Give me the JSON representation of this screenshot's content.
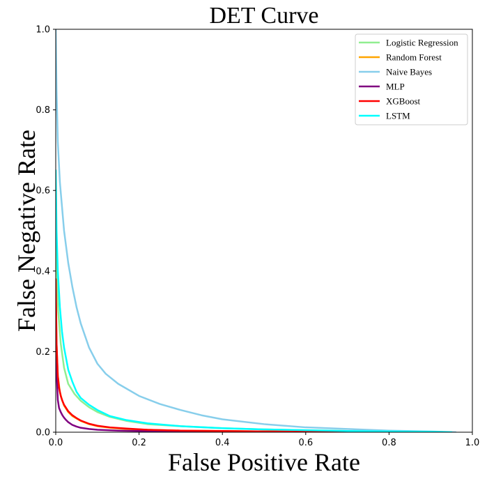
{
  "chart_data": {
    "type": "line",
    "title": "DET Curve",
    "xlabel": "False Positive Rate",
    "ylabel": "False Negative Rate",
    "xlim": [
      0.0,
      1.0
    ],
    "ylim": [
      0.0,
      1.0
    ],
    "xticks": [
      0.0,
      0.2,
      0.4,
      0.6,
      0.8,
      1.0
    ],
    "yticks": [
      0.0,
      0.2,
      0.4,
      0.6,
      0.8,
      1.0
    ],
    "xtick_labels": [
      "0.0",
      "0.2",
      "0.4",
      "0.6",
      "0.8",
      "1.0"
    ],
    "ytick_labels": [
      "0.0",
      "0.2",
      "0.4",
      "0.6",
      "0.8",
      "1.0"
    ],
    "grid": false,
    "legend_position": "top-right",
    "series": [
      {
        "name": "Logistic Regression",
        "color": "#90ee90",
        "x": [
          0.0,
          0.002,
          0.006,
          0.012,
          0.02,
          0.03,
          0.045,
          0.06,
          0.08,
          0.1,
          0.13,
          0.17,
          0.22,
          0.3,
          0.4,
          0.5,
          0.6,
          0.7,
          0.8,
          0.9,
          0.95
        ],
        "y": [
          0.62,
          0.42,
          0.3,
          0.22,
          0.16,
          0.12,
          0.095,
          0.078,
          0.062,
          0.05,
          0.038,
          0.028,
          0.02,
          0.015,
          0.01,
          0.007,
          0.005,
          0.003,
          0.002,
          0.001,
          0.0
        ]
      },
      {
        "name": "Random Forest",
        "color": "#ffa500",
        "x": [
          0.0,
          0.002,
          0.005,
          0.01,
          0.015,
          0.02,
          0.03,
          0.04,
          0.06,
          0.08,
          0.1,
          0.13,
          0.17,
          0.22,
          0.3,
          0.4,
          0.5,
          0.6,
          0.7,
          0.8,
          0.9
        ],
        "y": [
          0.38,
          0.22,
          0.14,
          0.1,
          0.08,
          0.066,
          0.05,
          0.04,
          0.028,
          0.02,
          0.015,
          0.011,
          0.008,
          0.006,
          0.004,
          0.003,
          0.002,
          0.0015,
          0.001,
          0.0005,
          0.0
        ]
      },
      {
        "name": "Naive Bayes",
        "color": "#87ceeb",
        "x": [
          0.0,
          0.002,
          0.005,
          0.01,
          0.02,
          0.03,
          0.04,
          0.05,
          0.06,
          0.08,
          0.1,
          0.12,
          0.15,
          0.2,
          0.25,
          0.3,
          0.35,
          0.4,
          0.5,
          0.6,
          0.7,
          0.8,
          0.9,
          0.96
        ],
        "y": [
          1.0,
          0.85,
          0.72,
          0.62,
          0.5,
          0.42,
          0.36,
          0.31,
          0.27,
          0.21,
          0.17,
          0.145,
          0.12,
          0.09,
          0.07,
          0.055,
          0.042,
          0.032,
          0.02,
          0.012,
          0.008,
          0.004,
          0.002,
          0.0
        ]
      },
      {
        "name": "MLP",
        "color": "#800080",
        "x": [
          0.0,
          0.002,
          0.005,
          0.008,
          0.012,
          0.016,
          0.02,
          0.025,
          0.03,
          0.04,
          0.05,
          0.06,
          0.08,
          0.1,
          0.15,
          0.2,
          0.3,
          0.4,
          0.5,
          0.6,
          0.7,
          0.8,
          0.92
        ],
        "y": [
          0.3,
          0.15,
          0.08,
          0.06,
          0.05,
          0.042,
          0.036,
          0.03,
          0.025,
          0.018,
          0.014,
          0.011,
          0.008,
          0.006,
          0.004,
          0.003,
          0.002,
          0.0015,
          0.001,
          0.0007,
          0.0004,
          0.0002,
          0.0
        ]
      },
      {
        "name": "XGBoost",
        "color": "#ff0000",
        "x": [
          0.0,
          0.002,
          0.005,
          0.008,
          0.012,
          0.016,
          0.02,
          0.03,
          0.04,
          0.05,
          0.06,
          0.08,
          0.1,
          0.13,
          0.17,
          0.22,
          0.3,
          0.4,
          0.5,
          0.6,
          0.7,
          0.8,
          0.9
        ],
        "y": [
          0.38,
          0.22,
          0.14,
          0.11,
          0.09,
          0.078,
          0.068,
          0.052,
          0.042,
          0.035,
          0.029,
          0.021,
          0.016,
          0.012,
          0.009,
          0.006,
          0.004,
          0.003,
          0.002,
          0.0015,
          0.001,
          0.0005,
          0.0
        ]
      },
      {
        "name": "LSTM",
        "color": "#00ffff",
        "x": [
          0.0,
          0.002,
          0.005,
          0.01,
          0.015,
          0.02,
          0.03,
          0.04,
          0.05,
          0.06,
          0.08,
          0.1,
          0.13,
          0.17,
          0.22,
          0.3,
          0.4,
          0.5,
          0.6,
          0.7,
          0.8,
          0.9,
          0.95
        ],
        "y": [
          0.65,
          0.5,
          0.4,
          0.31,
          0.25,
          0.21,
          0.155,
          0.125,
          0.1,
          0.085,
          0.068,
          0.055,
          0.04,
          0.03,
          0.022,
          0.015,
          0.01,
          0.007,
          0.005,
          0.003,
          0.002,
          0.001,
          0.0
        ]
      }
    ]
  }
}
